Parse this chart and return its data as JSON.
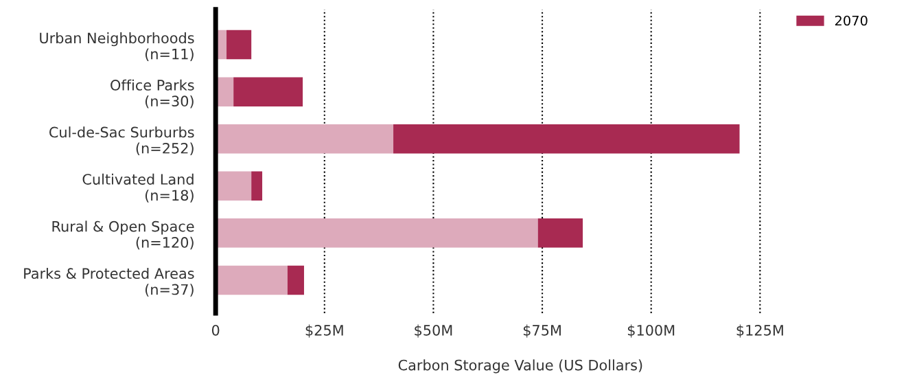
{
  "chart_data": {
    "type": "bar",
    "orientation": "horizontal",
    "stacked": true,
    "xlabel": "Carbon Storage Value (US Dollars)",
    "categories": [
      "Urban Neighborhoods\n(n=11)",
      "Office Parks\n(n=30)",
      "Cul-de-Sac Surburbs\n(n=252)",
      "Cultivated Land\n(n=18)",
      "Rural & Open Space\n(n=120)",
      "Parks & Protected Areas\n(n=37)"
    ],
    "series": [
      {
        "color": "#ddaabb",
        "values": [
          2.5,
          4.1,
          40.8,
          8.2,
          74.0,
          16.5
        ]
      },
      {
        "name": "2070",
        "color": "#a82a52",
        "values": [
          5.7,
          15.9,
          79.5,
          2.5,
          10.3,
          3.8
        ]
      }
    ],
    "xlim": [
      0,
      140
    ],
    "xticks": [
      0,
      {
        "value": 25,
        "label": "$25M"
      },
      {
        "value": 50,
        "label": "$50M"
      },
      {
        "value": 75,
        "label": "$75M"
      },
      {
        "value": 100,
        "label": "$100M"
      },
      {
        "value": 125,
        "label": "$125M"
      }
    ],
    "grid": "x",
    "legend": "top right"
  }
}
